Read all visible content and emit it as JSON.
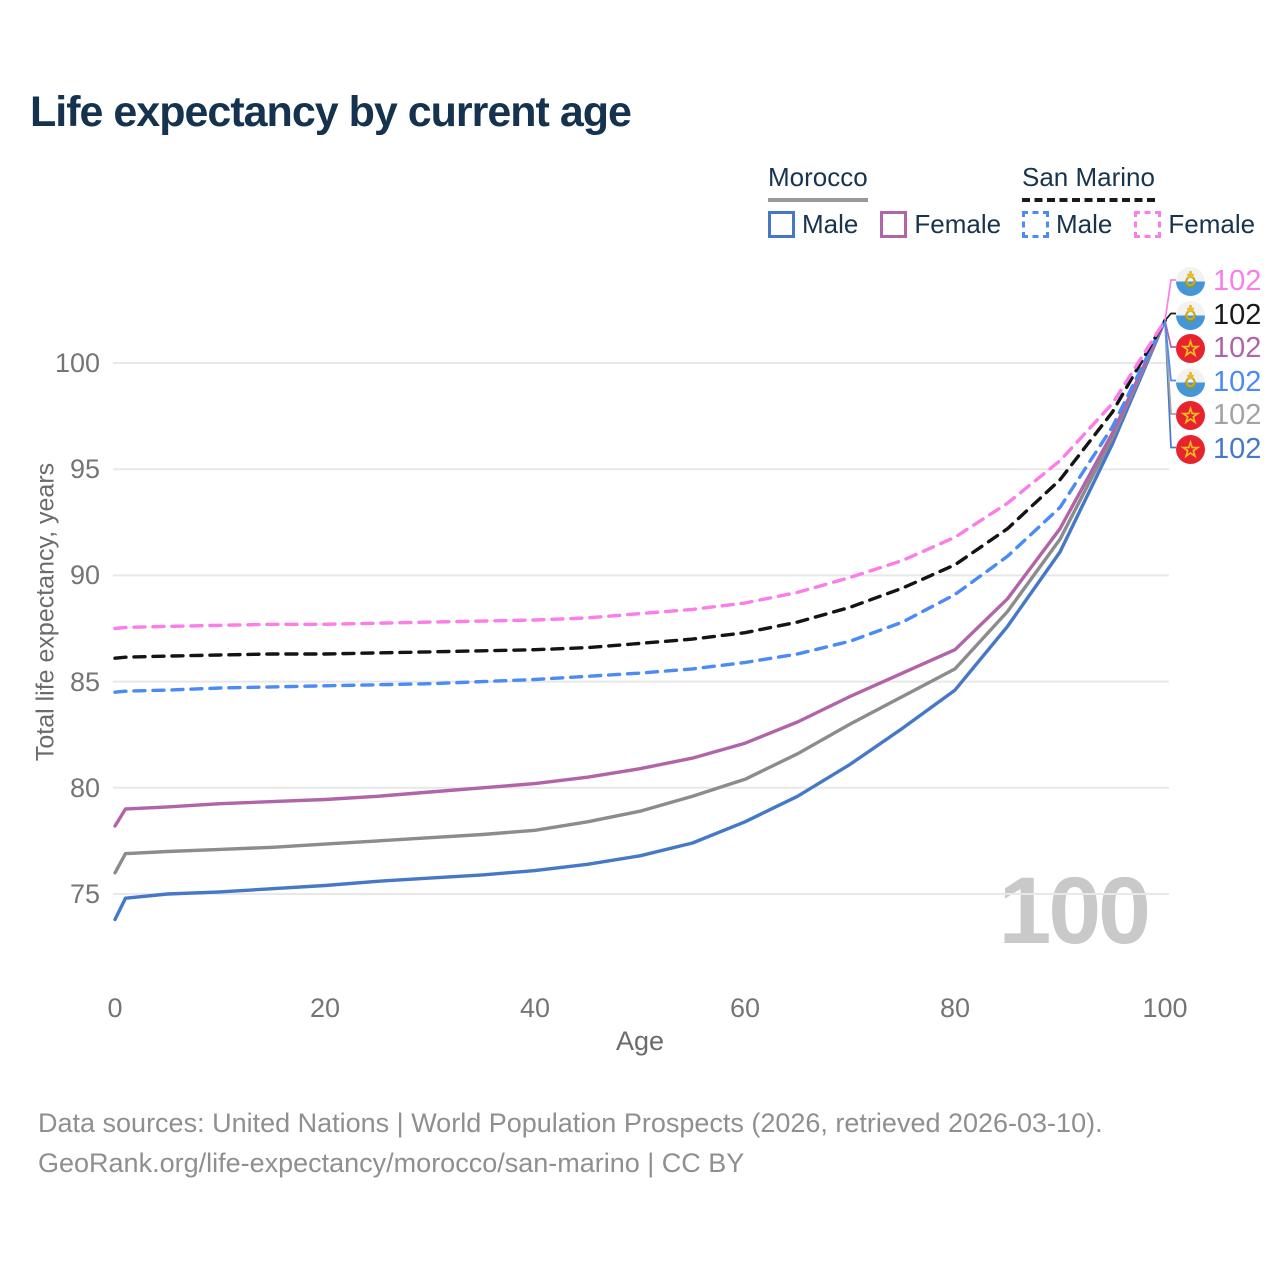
{
  "title": "Life expectancy by current age",
  "legend": {
    "groups": [
      {
        "label": "Morocco",
        "line_style": "solid",
        "underline_color": "#999999",
        "items": [
          {
            "label": "Male",
            "color": "#4678c8"
          },
          {
            "label": "Female",
            "color": "#b164a8"
          }
        ]
      },
      {
        "label": "San Marino",
        "line_style": "dashed",
        "underline_color": "#1a1a1a",
        "items": [
          {
            "label": "Male",
            "color": "#4b8bf5"
          },
          {
            "label": "Female",
            "color": "#fa7de9"
          }
        ]
      }
    ]
  },
  "watermark": "100",
  "footer": {
    "line1": "Data sources: United Nations | World Population Prospects (2026, retrieved 2026-03-10).",
    "line2": "GeoRank.org/life-expectancy/morocco/san-marino | CC BY"
  },
  "chart_data": {
    "type": "line",
    "title": "Life expectancy by current age",
    "xlabel": "Age",
    "ylabel": "Total life expectancy, years",
    "xlim": [
      0,
      100
    ],
    "ylim": [
      73,
      103
    ],
    "x_ticks": [
      0,
      20,
      40,
      60,
      80,
      100
    ],
    "y_ticks": [
      75,
      80,
      85,
      90,
      95,
      100
    ],
    "grid": "horizontal-only",
    "gridline_color": "#e8e8e8",
    "x": [
      0,
      1,
      5,
      10,
      15,
      20,
      25,
      30,
      35,
      40,
      45,
      50,
      55,
      60,
      65,
      70,
      75,
      80,
      85,
      90,
      95,
      100
    ],
    "series": [
      {
        "name": "Morocco — Male",
        "country": "Morocco",
        "sex": "Male",
        "flag": "morocco",
        "color": "#4678c8",
        "dash": false,
        "values": [
          73.8,
          74.8,
          75.0,
          75.1,
          75.25,
          75.4,
          75.6,
          75.75,
          75.9,
          76.1,
          76.4,
          76.8,
          77.4,
          78.4,
          79.6,
          81.1,
          82.8,
          84.6,
          87.6,
          91.1,
          96.2,
          102
        ],
        "end_label": {
          "value": "102",
          "row": 5,
          "color": "#4678c8"
        }
      },
      {
        "name": "Morocco — Both sexes",
        "country": "Morocco",
        "sex": "Both",
        "flag": "morocco",
        "color": "#8c8c8c",
        "dash": false,
        "values": [
          76.0,
          76.9,
          77.0,
          77.1,
          77.2,
          77.35,
          77.5,
          77.65,
          77.8,
          78.0,
          78.4,
          78.9,
          79.6,
          80.4,
          81.6,
          83.0,
          84.3,
          85.6,
          88.3,
          91.7,
          96.5,
          102
        ],
        "end_label": {
          "value": "102",
          "row": 4,
          "color": "#a3a3a3"
        }
      },
      {
        "name": "Morocco — Female",
        "country": "Morocco",
        "sex": "Female",
        "flag": "morocco",
        "color": "#b164a8",
        "dash": false,
        "values": [
          78.2,
          79.0,
          79.1,
          79.25,
          79.35,
          79.45,
          79.6,
          79.8,
          80.0,
          80.2,
          80.5,
          80.9,
          81.4,
          82.1,
          83.1,
          84.3,
          85.4,
          86.5,
          88.9,
          92.2,
          96.7,
          102
        ],
        "end_label": {
          "value": "102",
          "row": 2,
          "color": "#b164a8"
        }
      },
      {
        "name": "San Marino — Male",
        "country": "San Marino",
        "sex": "Male",
        "flag": "san-marino",
        "color": "#4b8bf5",
        "dash": true,
        "values": [
          84.5,
          84.55,
          84.6,
          84.7,
          84.75,
          84.8,
          84.85,
          84.9,
          85.0,
          85.1,
          85.25,
          85.4,
          85.6,
          85.9,
          86.3,
          86.9,
          87.8,
          89.1,
          90.9,
          93.2,
          97.0,
          102
        ],
        "end_label": {
          "value": "102",
          "row": 3,
          "color": "#4b8bf5"
        }
      },
      {
        "name": "San Marino — Both sexes",
        "country": "San Marino",
        "sex": "Both",
        "flag": "san-marino",
        "color": "#141414",
        "dash": true,
        "values": [
          86.1,
          86.15,
          86.2,
          86.25,
          86.3,
          86.3,
          86.35,
          86.4,
          86.45,
          86.5,
          86.6,
          86.8,
          87.0,
          87.3,
          87.8,
          88.5,
          89.4,
          90.5,
          92.2,
          94.5,
          97.7,
          102
        ],
        "end_label": {
          "value": "102",
          "row": 1,
          "color": "#1a1a1a"
        }
      },
      {
        "name": "San Marino — Female",
        "country": "San Marino",
        "sex": "Female",
        "flag": "san-marino",
        "color": "#fa7de9",
        "dash": true,
        "values": [
          87.5,
          87.55,
          87.6,
          87.65,
          87.7,
          87.7,
          87.75,
          87.8,
          87.85,
          87.9,
          88.0,
          88.2,
          88.4,
          88.7,
          89.2,
          89.9,
          90.7,
          91.8,
          93.4,
          95.4,
          98.1,
          102
        ],
        "end_label": {
          "value": "102",
          "row": 0,
          "color": "#fa7de9"
        }
      }
    ],
    "end_label_note": "All series converge to value 102 at age 100"
  }
}
